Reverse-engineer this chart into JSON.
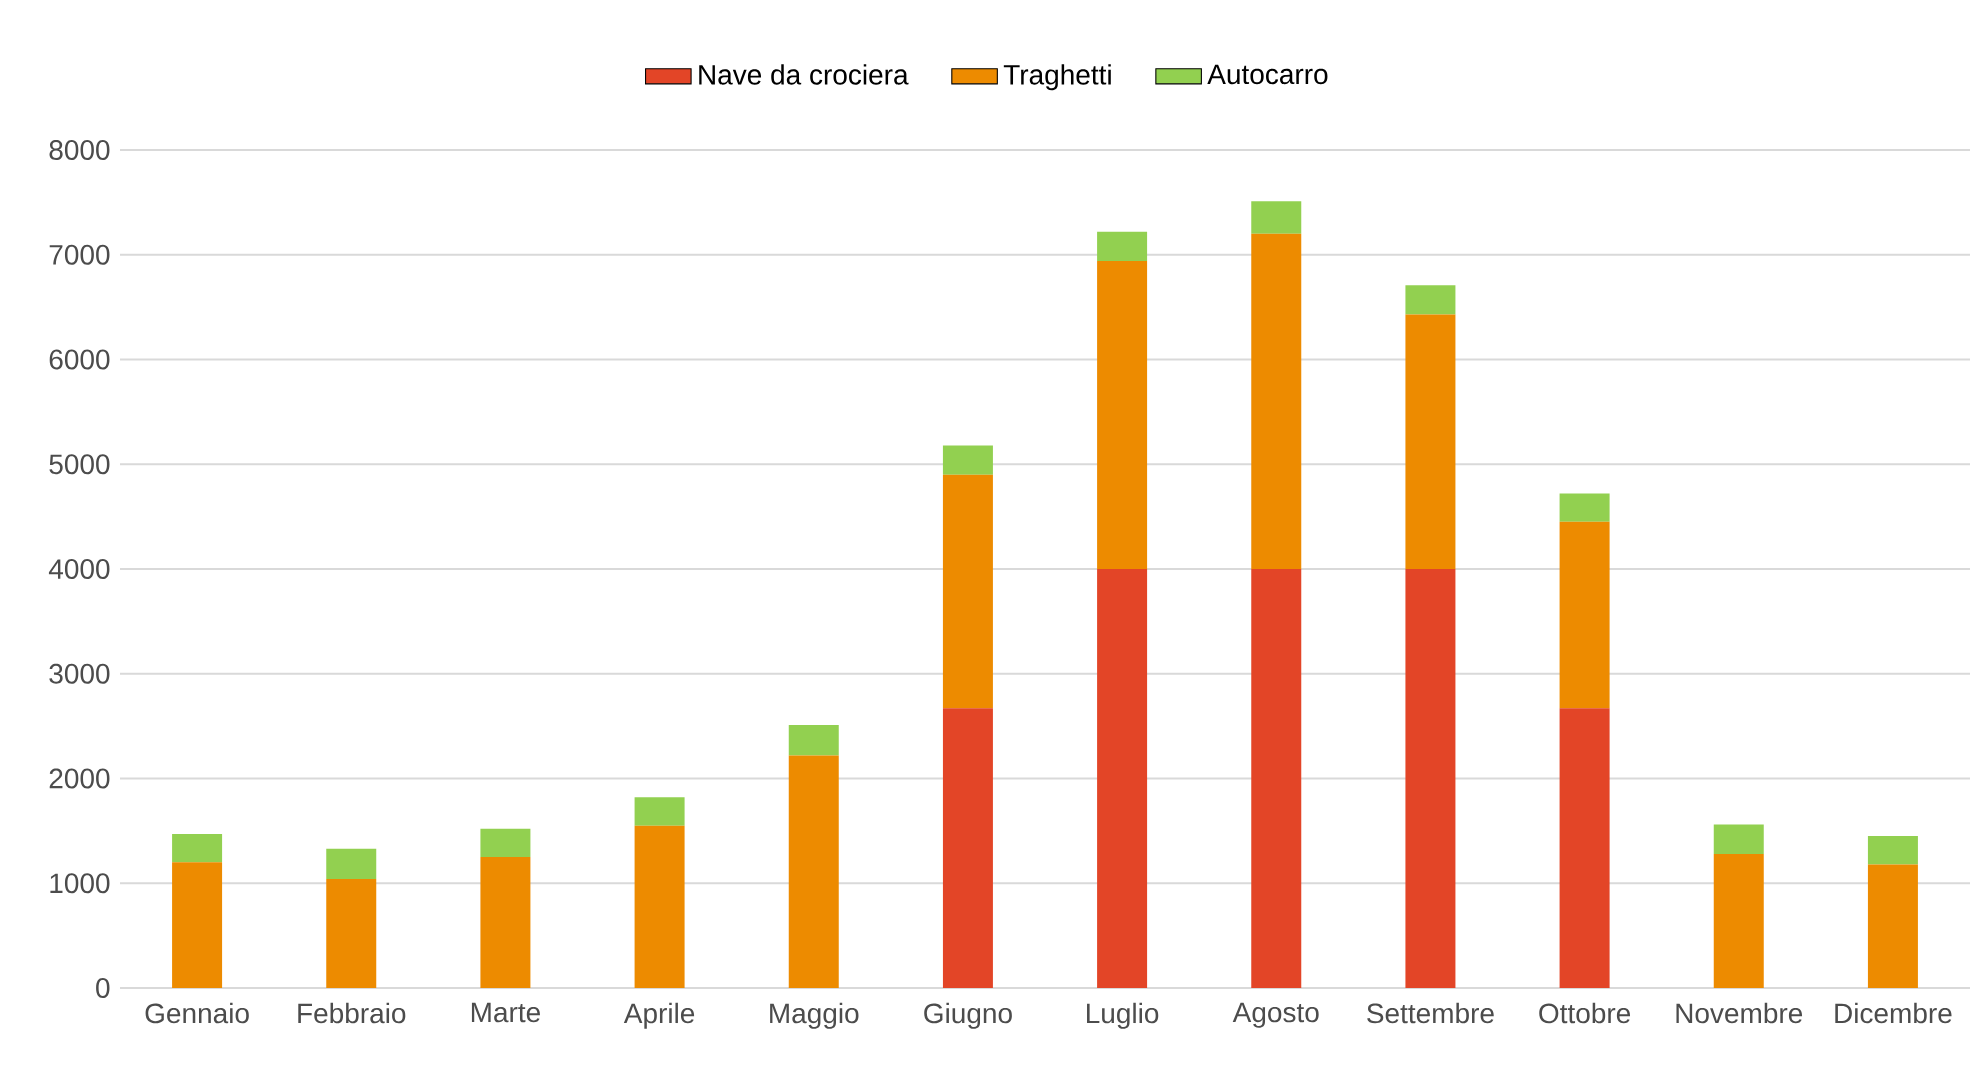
{
  "chart_data": {
    "type": "bar",
    "stacked": true,
    "categories": [
      "Gennaio",
      "Febbraio",
      "Marte",
      "Aprile",
      "Maggio",
      "Giugno",
      "Luglio",
      "Agosto",
      "Settembre",
      "Ottobre",
      "Novembre",
      "Dicembre"
    ],
    "series": [
      {
        "name": "Nave da crociera",
        "color": "#e34527",
        "values": [
          0,
          0,
          0,
          0,
          0,
          2670,
          4000,
          4000,
          4000,
          2670,
          0,
          0
        ]
      },
      {
        "name": "Traghetti",
        "color": "#ed8b00",
        "values": [
          1200,
          1040,
          1250,
          1550,
          2220,
          2230,
          2940,
          3200,
          2430,
          1780,
          1280,
          1180
        ]
      },
      {
        "name": "Autocarro",
        "color": "#92d050",
        "values": [
          270,
          290,
          270,
          270,
          290,
          280,
          280,
          310,
          280,
          270,
          280,
          270
        ]
      }
    ],
    "ylim": [
      0,
      8000
    ],
    "yticks": [
      0,
      1000,
      2000,
      3000,
      4000,
      5000,
      6000,
      7000,
      8000
    ],
    "grid": "y",
    "legend": "top"
  }
}
